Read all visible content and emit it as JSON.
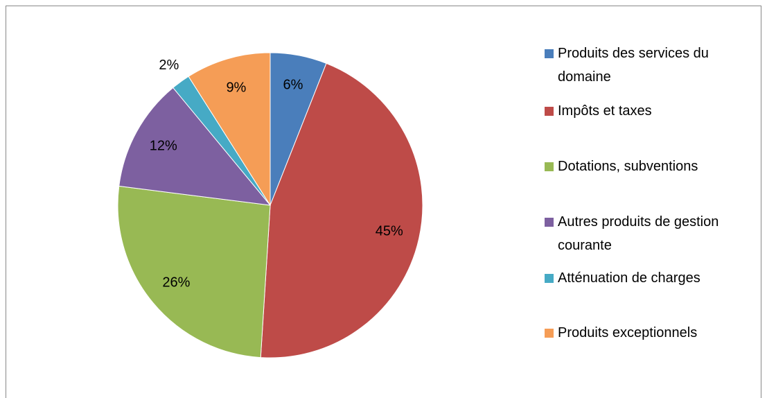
{
  "chart_data": {
    "type": "pie",
    "categories": [
      "Produits des services du domaine",
      "Impôts et taxes",
      "Dotations, subventions",
      "Autres produits de gestion courante",
      "Atténuation de charges",
      "Produits exceptionnels"
    ],
    "values": [
      6,
      45,
      26,
      12,
      2,
      9
    ],
    "value_labels": [
      "6%",
      "45%",
      "26%",
      "12%",
      "2%",
      "9%"
    ],
    "colors": [
      "#4a7ebb",
      "#be4b48",
      "#98b954",
      "#7d60a0",
      "#46aac5",
      "#f59d56"
    ],
    "legend": "right"
  }
}
